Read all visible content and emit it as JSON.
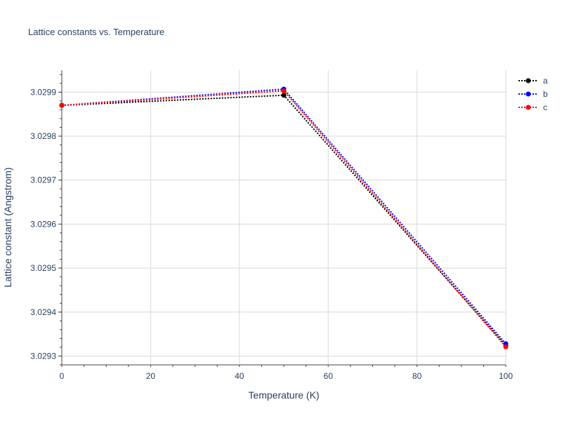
{
  "chart_data": {
    "type": "line",
    "title": "Lattice constants vs. Temperature",
    "xlabel": "Temperature (K)",
    "ylabel": "Lattice constant (Angstrom)",
    "xlim": [
      0,
      100
    ],
    "ylim": [
      3.02928,
      3.02995
    ],
    "xticks": [
      0,
      20,
      40,
      60,
      80,
      100
    ],
    "xtick_labels": [
      "0",
      "20",
      "40",
      "60",
      "80",
      "100"
    ],
    "yticks": [
      3.0293,
      3.0294,
      3.0295,
      3.0296,
      3.0297,
      3.0298,
      3.0299
    ],
    "ytick_labels": [
      "3.0293",
      "3.0294",
      "3.0295",
      "3.0296",
      "3.0297",
      "3.0298",
      "3.0299"
    ],
    "grid": true,
    "legend_position": "top-right",
    "x": [
      0,
      50,
      100
    ],
    "series": [
      {
        "name": "a",
        "color": "#000000",
        "values": [
          3.02987,
          3.029893,
          3.029324
        ]
      },
      {
        "name": "b",
        "color": "#0000ff",
        "values": [
          3.02987,
          3.029907,
          3.029328
        ]
      },
      {
        "name": "c",
        "color": "#ff0000",
        "values": [
          3.02987,
          3.029903,
          3.029321
        ]
      }
    ]
  }
}
